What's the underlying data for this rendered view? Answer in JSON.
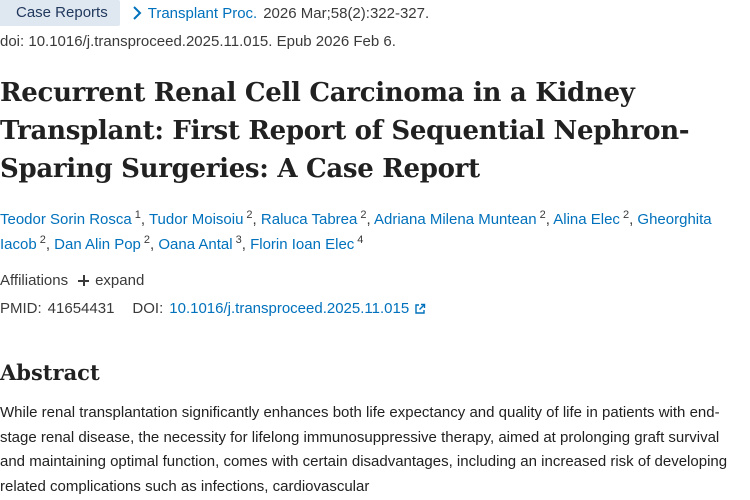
{
  "header": {
    "publication_type": "Case Reports",
    "journal": "Transplant Proc.",
    "citation": "2026 Mar;58(2):322-327.",
    "doi_epub": "doi: 10.1016/j.transproceed.2025.11.015. Epub 2026 Feb 6."
  },
  "article": {
    "title": "Recurrent Renal Cell Carcinoma in a Kidney Transplant: First Report of Sequential Nephron-Sparing Surgeries: A Case Report"
  },
  "authors": [
    {
      "name": "Teodor Sorin Rosca",
      "affiliation": "1"
    },
    {
      "name": "Tudor Moisoiu",
      "affiliation": "2"
    },
    {
      "name": "Raluca Tabrea",
      "affiliation": "2"
    },
    {
      "name": "Adriana Milena Muntean",
      "affiliation": "2"
    },
    {
      "name": "Alina Elec",
      "affiliation": "2"
    },
    {
      "name": "Gheorghita Iacob",
      "affiliation": "2"
    },
    {
      "name": "Dan Alin Pop",
      "affiliation": "2"
    },
    {
      "name": "Oana Antal",
      "affiliation": "3"
    },
    {
      "name": "Florin Ioan Elec",
      "affiliation": "4"
    }
  ],
  "affiliations": {
    "label": "Affiliations",
    "expand_label": "expand"
  },
  "identifiers": {
    "pmid_label": "PMID:",
    "pmid": "41654431",
    "doi_label": "DOI:",
    "doi": "10.1016/j.transproceed.2025.11.015"
  },
  "abstract": {
    "heading": "Abstract",
    "text": "While renal transplantation significantly enhances both life expectancy and quality of life in patients with end-stage renal disease, the necessity for lifelong immunosuppressive therapy, aimed at prolonging graft survival and maintaining optimal function, comes with certain disadvantages, including an increased risk of developing related complications such as infections, cardiovascular"
  },
  "icons": {
    "journal_chevron": "chevron-right-icon",
    "expand": "plus-icon",
    "doi_external": "external-link-icon"
  },
  "colors": {
    "link": "#0071bc",
    "badge_bg": "#dfe7f1",
    "text": "#212121"
  }
}
